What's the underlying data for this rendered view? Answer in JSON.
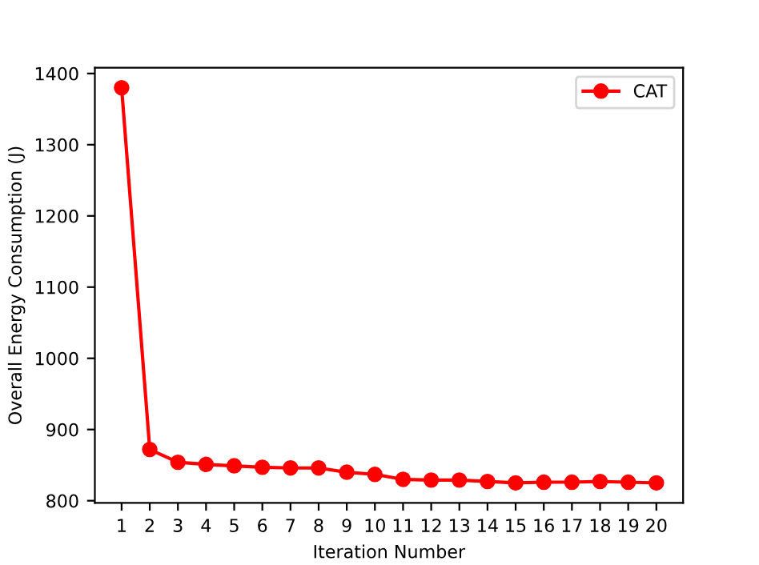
{
  "chart_data": {
    "type": "line",
    "xlabel": "Iteration Number",
    "ylabel": "Overall Energy Consumption (J)",
    "x": [
      1,
      2,
      3,
      4,
      5,
      6,
      7,
      8,
      9,
      10,
      11,
      12,
      13,
      14,
      15,
      16,
      17,
      18,
      19,
      20
    ],
    "series": [
      {
        "name": "CAT",
        "color": "#ff0000",
        "values": [
          1380,
          872,
          854,
          851,
          849,
          847,
          846,
          846,
          840,
          837,
          830,
          829,
          829,
          827,
          825,
          826,
          826,
          827,
          826,
          825
        ]
      }
    ],
    "xlim": [
      0.05,
      20.95
    ],
    "xticks": [
      1,
      2,
      3,
      4,
      5,
      6,
      7,
      8,
      9,
      10,
      11,
      12,
      13,
      14,
      15,
      16,
      17,
      18,
      19,
      20
    ],
    "ylim": [
      797,
      1408
    ],
    "yticks": [
      800,
      900,
      1000,
      1100,
      1200,
      1300,
      1400
    ],
    "marker": "circle",
    "line_style": "solid",
    "legend": "top right",
    "grid": false
  }
}
